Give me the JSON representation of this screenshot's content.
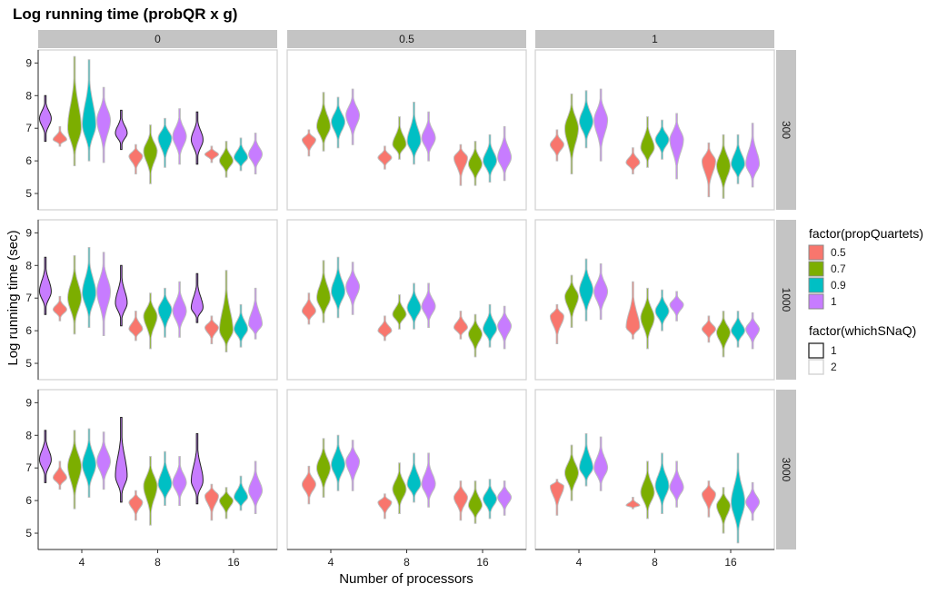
{
  "chart_data": {
    "type": "violin",
    "title": "Log running time (probQR x g)",
    "xlabel": "Number of processors",
    "ylabel": "Log running time (sec)",
    "x_categories": [
      "4",
      "8",
      "16"
    ],
    "y_ticks": [
      5,
      6,
      7,
      8,
      9
    ],
    "ylim": [
      4.5,
      9.4
    ],
    "col_facets": [
      "0",
      "0.5",
      "1"
    ],
    "row_facets": [
      "300",
      "1000",
      "3000"
    ],
    "fill_legend": {
      "title": "factor(propQuartets)",
      "entries": [
        "0.5",
        "0.7",
        "0.9",
        "1"
      ],
      "colors": [
        "#F8766D",
        "#7CAE00",
        "#00BFC4",
        "#C77CFF"
      ]
    },
    "color_legend": {
      "title": "factor(whichSNaQ)",
      "entries": [
        "1",
        "2"
      ],
      "colors": [
        "#222222",
        "#cfcfcf"
      ]
    },
    "series_note": "each violin: [median, min, max] of log running time; group order 0.5, 0.7, 0.9, 1",
    "panels": [
      {
        "row": "300",
        "col": "0",
        "groups": [
          {
            "x": "4",
            "violins": [
              [
                6.65,
                6.45,
                7.05
              ],
              [
                7.0,
                5.85,
                9.2
              ],
              [
                7.1,
                6.0,
                9.1
              ],
              [
                7.25,
                5.95,
                8.25
              ]
            ],
            "snaq1": {
              "group": 3,
              "median": 7.3,
              "min": 6.6,
              "max": 8.0
            }
          },
          {
            "x": "8",
            "violins": [
              [
                6.15,
                5.6,
                6.5
              ],
              [
                6.3,
                5.3,
                7.1
              ],
              [
                6.7,
                5.8,
                7.3
              ],
              [
                6.75,
                5.9,
                7.6
              ]
            ],
            "snaq1": {
              "group": 3,
              "median": 6.85,
              "min": 6.35,
              "max": 7.55
            }
          },
          {
            "x": "16",
            "violins": [
              [
                6.2,
                5.95,
                6.45
              ],
              [
                6.0,
                5.5,
                6.6
              ],
              [
                6.1,
                5.7,
                6.7
              ],
              [
                6.2,
                5.6,
                6.85
              ]
            ],
            "snaq1": {
              "group": 3,
              "median": 6.65,
              "min": 5.9,
              "max": 7.5
            }
          }
        ]
      },
      {
        "row": "300",
        "col": "0.5",
        "groups": [
          {
            "x": "4",
            "violins": [
              [
                6.65,
                6.15,
                6.95
              ],
              [
                7.05,
                6.3,
                8.1
              ],
              [
                7.2,
                6.4,
                7.95
              ],
              [
                7.4,
                6.5,
                8.2
              ]
            ]
          },
          {
            "x": "8",
            "violins": [
              [
                6.1,
                5.75,
                6.45
              ],
              [
                6.5,
                6.05,
                7.35
              ],
              [
                6.6,
                5.9,
                7.8
              ],
              [
                6.7,
                6.0,
                7.5
              ]
            ]
          },
          {
            "x": "16",
            "violins": [
              [
                6.1,
                5.25,
                6.5
              ],
              [
                5.9,
                5.25,
                6.6
              ],
              [
                6.0,
                5.35,
                6.8
              ],
              [
                6.1,
                5.4,
                7.05
              ]
            ]
          }
        ]
      },
      {
        "row": "300",
        "col": "1",
        "groups": [
          {
            "x": "4",
            "violins": [
              [
                6.5,
                6.0,
                6.95
              ],
              [
                7.0,
                5.6,
                8.05
              ],
              [
                7.2,
                6.4,
                8.15
              ],
              [
                7.25,
                6.0,
                8.2
              ]
            ]
          },
          {
            "x": "8",
            "violins": [
              [
                5.95,
                5.6,
                6.4
              ],
              [
                6.4,
                5.8,
                7.35
              ],
              [
                6.65,
                6.05,
                7.25
              ],
              [
                6.65,
                5.45,
                7.45
              ]
            ]
          },
          {
            "x": "16",
            "violins": [
              [
                6.0,
                4.9,
                6.55
              ],
              [
                5.85,
                4.85,
                6.8
              ],
              [
                5.9,
                5.3,
                6.8
              ],
              [
                5.9,
                5.2,
                7.15
              ]
            ]
          }
        ]
      },
      {
        "row": "1000",
        "col": "0",
        "groups": [
          {
            "x": "4",
            "violins": [
              [
                6.65,
                6.3,
                7.05
              ],
              [
                7.0,
                5.9,
                8.3
              ],
              [
                7.15,
                6.1,
                8.55
              ],
              [
                7.2,
                5.85,
                8.4
              ]
            ],
            "snaq1": {
              "group": 3,
              "median": 7.2,
              "min": 6.5,
              "max": 8.25
            }
          },
          {
            "x": "8",
            "violins": [
              [
                6.05,
                5.7,
                6.6
              ],
              [
                6.45,
                5.45,
                7.15
              ],
              [
                6.65,
                5.8,
                7.3
              ],
              [
                6.6,
                5.8,
                7.5
              ]
            ],
            "snaq1": {
              "group": 3,
              "median": 6.85,
              "min": 6.15,
              "max": 8.0
            }
          },
          {
            "x": "16",
            "violins": [
              [
                6.1,
                5.6,
                6.45
              ],
              [
                6.0,
                5.35,
                7.85
              ],
              [
                6.05,
                5.5,
                6.8
              ],
              [
                6.2,
                5.75,
                7.3
              ]
            ],
            "snaq1": {
              "group": 3,
              "median": 6.7,
              "min": 6.25,
              "max": 7.75
            }
          }
        ]
      },
      {
        "row": "1000",
        "col": "0.5",
        "groups": [
          {
            "x": "4",
            "violins": [
              [
                6.6,
                6.2,
                7.15
              ],
              [
                7.0,
                6.25,
                8.15
              ],
              [
                7.2,
                6.4,
                8.25
              ],
              [
                7.35,
                6.5,
                8.1
              ]
            ]
          },
          {
            "x": "8",
            "violins": [
              [
                6.0,
                5.7,
                6.45
              ],
              [
                6.5,
                6.05,
                7.1
              ],
              [
                6.7,
                6.05,
                7.45
              ],
              [
                6.75,
                6.1,
                7.45
              ]
            ]
          },
          {
            "x": "16",
            "violins": [
              [
                6.1,
                5.75,
                6.6
              ],
              [
                5.9,
                5.2,
                6.5
              ],
              [
                6.05,
                5.5,
                6.8
              ],
              [
                6.15,
                5.45,
                6.75
              ]
            ]
          }
        ]
      },
      {
        "row": "1000",
        "col": "1",
        "groups": [
          {
            "x": "4",
            "violins": [
              [
                6.45,
                5.6,
                6.8
              ],
              [
                7.05,
                6.1,
                7.7
              ],
              [
                7.25,
                6.3,
                8.2
              ],
              [
                7.2,
                6.35,
                8.05
              ]
            ]
          },
          {
            "x": "8",
            "violins": [
              [
                6.1,
                5.75,
                7.5
              ],
              [
                6.4,
                5.45,
                7.3
              ],
              [
                6.6,
                6.0,
                7.25
              ],
              [
                6.8,
                6.3,
                7.2
              ]
            ]
          },
          {
            "x": "16",
            "violins": [
              [
                6.05,
                5.65,
                6.45
              ],
              [
                5.95,
                5.2,
                6.6
              ],
              [
                6.0,
                5.5,
                6.6
              ],
              [
                6.05,
                5.45,
                6.55
              ]
            ]
          }
        ]
      },
      {
        "row": "3000",
        "col": "0",
        "groups": [
          {
            "x": "4",
            "violins": [
              [
                6.7,
                6.35,
                7.2
              ],
              [
                7.05,
                5.75,
                8.15
              ],
              [
                7.1,
                6.1,
                8.2
              ],
              [
                7.2,
                6.35,
                8.1
              ]
            ],
            "snaq1": {
              "group": 3,
              "median": 7.25,
              "min": 6.55,
              "max": 8.15
            }
          },
          {
            "x": "8",
            "violins": [
              [
                5.95,
                5.4,
                6.3
              ],
              [
                6.45,
                5.25,
                7.35
              ],
              [
                6.5,
                5.85,
                7.5
              ],
              [
                6.55,
                5.85,
                7.35
              ]
            ],
            "snaq1": {
              "group": 3,
              "median": 6.75,
              "min": 5.95,
              "max": 8.55
            }
          },
          {
            "x": "16",
            "violins": [
              [
                6.15,
                5.4,
                6.5
              ],
              [
                6.0,
                5.45,
                6.4
              ],
              [
                6.1,
                5.7,
                6.75
              ],
              [
                6.3,
                5.6,
                7.2
              ]
            ],
            "snaq1": {
              "group": 3,
              "median": 6.6,
              "min": 5.9,
              "max": 8.05
            }
          }
        ]
      },
      {
        "row": "3000",
        "col": "0.5",
        "groups": [
          {
            "x": "4",
            "violins": [
              [
                6.5,
                5.9,
                7.05
              ],
              [
                7.0,
                6.1,
                7.9
              ],
              [
                7.1,
                6.3,
                8.0
              ],
              [
                7.2,
                6.3,
                7.85
              ]
            ]
          },
          {
            "x": "8",
            "violins": [
              [
                5.95,
                5.45,
                6.2
              ],
              [
                6.35,
                5.6,
                7.15
              ],
              [
                6.5,
                5.95,
                7.45
              ],
              [
                6.5,
                5.8,
                7.45
              ]
            ]
          },
          {
            "x": "16",
            "violins": [
              [
                6.1,
                5.4,
                6.6
              ],
              [
                5.85,
                5.3,
                6.6
              ],
              [
                6.05,
                5.45,
                6.65
              ],
              [
                6.1,
                5.55,
                6.6
              ]
            ]
          }
        ]
      },
      {
        "row": "3000",
        "col": "1",
        "groups": [
          {
            "x": "4",
            "violins": [
              [
                6.45,
                5.55,
                6.65
              ],
              [
                6.85,
                6.0,
                7.7
              ],
              [
                7.0,
                6.45,
                8.05
              ],
              [
                7.0,
                6.3,
                7.95
              ]
            ]
          },
          {
            "x": "8",
            "violins": [
              [
                5.85,
                5.75,
                6.1
              ],
              [
                6.25,
                5.45,
                7.2
              ],
              [
                6.45,
                5.6,
                7.45
              ],
              [
                6.4,
                5.8,
                7.2
              ]
            ]
          },
          {
            "x": "16",
            "violins": [
              [
                6.2,
                5.5,
                6.6
              ],
              [
                5.85,
                5.0,
                6.4
              ],
              [
                5.95,
                4.7,
                7.45
              ],
              [
                5.95,
                5.4,
                6.55
              ]
            ]
          }
        ]
      }
    ]
  }
}
